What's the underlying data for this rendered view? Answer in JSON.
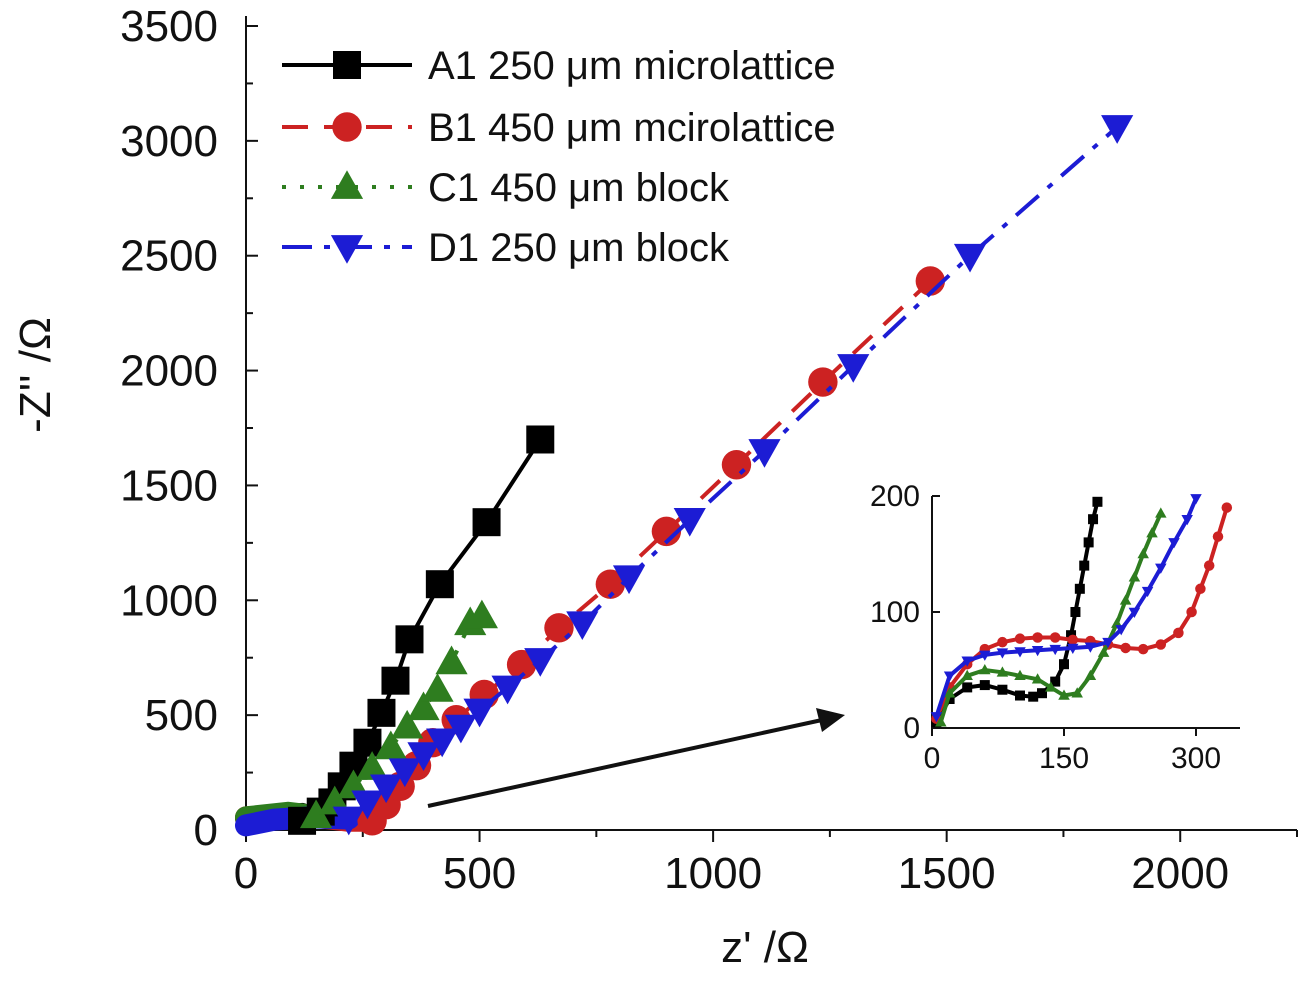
{
  "chart_data": {
    "type": "scatter",
    "title": "",
    "xlabel": "z' /Ω",
    "ylabel": "-Z'' /Ω",
    "xlim": [
      0,
      2250
    ],
    "ylim": [
      0,
      3500
    ],
    "xticks": [
      0,
      500,
      1000,
      1500,
      2000
    ],
    "yticks": [
      0,
      500,
      1000,
      1500,
      2000,
      2500,
      3000,
      3500
    ],
    "xtick_labels": [
      "0",
      "500",
      "1000",
      "1500",
      "2000"
    ],
    "ytick_labels": [
      "0",
      "500",
      "1000",
      "1500",
      "2000",
      "2500",
      "3000",
      "3500"
    ],
    "legend_position": "top-left",
    "series": [
      {
        "name": "A1 250 μm microlattice",
        "color": "#000000",
        "marker": "square",
        "line": "solid",
        "points": [
          [
            120,
            40
          ],
          [
            160,
            80
          ],
          [
            185,
            120
          ],
          [
            205,
            190
          ],
          [
            230,
            280
          ],
          [
            260,
            380
          ],
          [
            290,
            510
          ],
          [
            320,
            650
          ],
          [
            350,
            830
          ],
          [
            415,
            1070
          ],
          [
            515,
            1340
          ],
          [
            630,
            1700
          ]
        ]
      },
      {
        "name": "B1 450 μm mcirolattice",
        "color": "#cc2222",
        "marker": "circle",
        "line": "dash",
        "points": [
          [
            270,
            40
          ],
          [
            300,
            110
          ],
          [
            330,
            190
          ],
          [
            365,
            280
          ],
          [
            400,
            380
          ],
          [
            450,
            480
          ],
          [
            510,
            590
          ],
          [
            590,
            720
          ],
          [
            670,
            880
          ],
          [
            780,
            1070
          ],
          [
            900,
            1300
          ],
          [
            1050,
            1590
          ],
          [
            1235,
            1950
          ],
          [
            1465,
            2390
          ]
        ]
      },
      {
        "name": "C1 450 μm block",
        "color": "#2e7d1f",
        "marker": "triangle-up",
        "line": "dot",
        "points": [
          [
            150,
            60
          ],
          [
            190,
            120
          ],
          [
            230,
            190
          ],
          [
            270,
            270
          ],
          [
            310,
            360
          ],
          [
            345,
            450
          ],
          [
            380,
            530
          ],
          [
            410,
            610
          ],
          [
            440,
            730
          ],
          [
            480,
            900
          ],
          [
            505,
            930
          ]
        ]
      },
      {
        "name": "D1 250 μm block",
        "color": "#1c1cd4",
        "marker": "triangle-down",
        "line": "dashdot",
        "points": [
          [
            220,
            50
          ],
          [
            260,
            120
          ],
          [
            300,
            190
          ],
          [
            340,
            260
          ],
          [
            380,
            330
          ],
          [
            420,
            390
          ],
          [
            460,
            450
          ],
          [
            500,
            520
          ],
          [
            560,
            620
          ],
          [
            630,
            740
          ],
          [
            720,
            900
          ],
          [
            820,
            1100
          ],
          [
            950,
            1350
          ],
          [
            1110,
            1650
          ],
          [
            1300,
            2020
          ],
          [
            1550,
            2500
          ],
          [
            1865,
            3060
          ]
        ]
      }
    ],
    "inset": {
      "xlim": [
        0,
        350
      ],
      "ylim": [
        0,
        200
      ],
      "xticks": [
        0,
        150,
        300
      ],
      "yticks": [
        0,
        100,
        200
      ],
      "xtick_labels": [
        "0",
        "150",
        "300"
      ],
      "ytick_labels": [
        "0",
        "100",
        "200"
      ],
      "series": [
        {
          "name": "A1",
          "color": "#000000",
          "points": [
            [
              5,
              5
            ],
            [
              20,
              25
            ],
            [
              40,
              35
            ],
            [
              60,
              37
            ],
            [
              80,
              33
            ],
            [
              100,
              28
            ],
            [
              115,
              27
            ],
            [
              125,
              30
            ],
            [
              140,
              40
            ],
            [
              150,
              55
            ],
            [
              158,
              80
            ],
            [
              163,
              100
            ],
            [
              168,
              120
            ],
            [
              173,
              140
            ],
            [
              178,
              160
            ],
            [
              183,
              180
            ],
            [
              188,
              195
            ]
          ]
        },
        {
          "name": "B1",
          "color": "#cc2222",
          "points": [
            [
              5,
              8
            ],
            [
              20,
              35
            ],
            [
              40,
              55
            ],
            [
              60,
              68
            ],
            [
              80,
              74
            ],
            [
              100,
              77
            ],
            [
              120,
              78
            ],
            [
              140,
              78
            ],
            [
              160,
              76
            ],
            [
              180,
              75
            ],
            [
              200,
              72
            ],
            [
              220,
              69
            ],
            [
              240,
              68
            ],
            [
              260,
              72
            ],
            [
              280,
              82
            ],
            [
              295,
              100
            ],
            [
              305,
              120
            ],
            [
              315,
              140
            ],
            [
              325,
              165
            ],
            [
              335,
              190
            ]
          ]
        },
        {
          "name": "C1",
          "color": "#2e7d1f",
          "points": [
            [
              10,
              5
            ],
            [
              20,
              30
            ],
            [
              40,
              45
            ],
            [
              60,
              50
            ],
            [
              80,
              48
            ],
            [
              100,
              45
            ],
            [
              120,
              42
            ],
            [
              135,
              35
            ],
            [
              150,
              28
            ],
            [
              165,
              30
            ],
            [
              180,
              45
            ],
            [
              195,
              65
            ],
            [
              210,
              90
            ],
            [
              220,
              110
            ],
            [
              230,
              130
            ],
            [
              240,
              150
            ],
            [
              250,
              168
            ],
            [
              260,
              185
            ]
          ]
        },
        {
          "name": "D1",
          "color": "#1c1cd4",
          "points": [
            [
              5,
              10
            ],
            [
              20,
              45
            ],
            [
              40,
              58
            ],
            [
              60,
              63
            ],
            [
              80,
              65
            ],
            [
              100,
              66
            ],
            [
              120,
              67
            ],
            [
              140,
              68
            ],
            [
              160,
              69
            ],
            [
              180,
              70
            ],
            [
              200,
              74
            ],
            [
              215,
              85
            ],
            [
              230,
              100
            ],
            [
              245,
              118
            ],
            [
              260,
              138
            ],
            [
              275,
              160
            ],
            [
              290,
              180
            ],
            [
              300,
              198
            ]
          ]
        }
      ]
    }
  }
}
